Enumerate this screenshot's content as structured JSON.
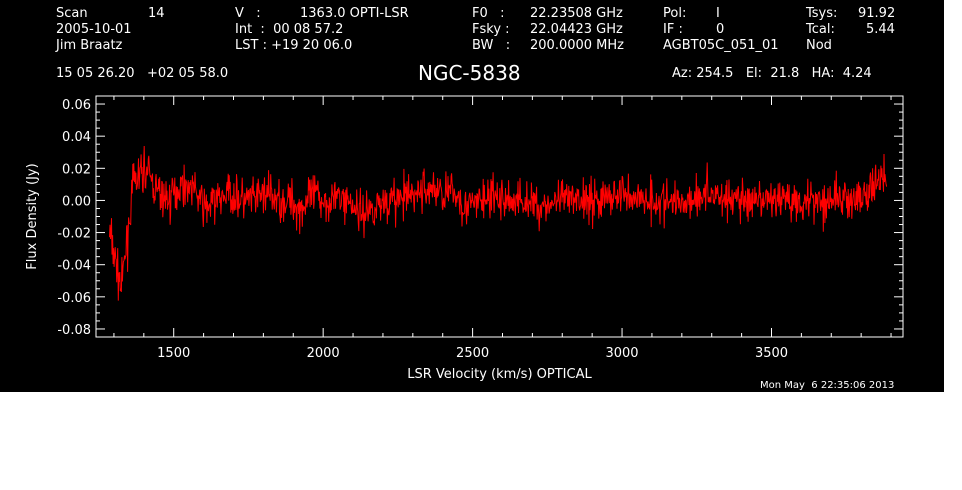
{
  "header": {
    "col1": {
      "row1_label": "Scan",
      "row1_value": "14",
      "row2": "2005-10-01",
      "row3": "Jim Braatz"
    },
    "col2": {
      "row1_label": "V   :",
      "row1_value": "1363.0 OPTI-LSR",
      "row2": "Int  :  00 08 57.2",
      "row3": "LST : +19 20 06.0"
    },
    "col3": {
      "row1_label": "F0   :",
      "row1_value": "22.23508 GHz",
      "row2_label": "Fsky :",
      "row2_value": "22.04423 GHz",
      "row3_label": "BW   :",
      "row3_value": "200.0000 MHz"
    },
    "col4": {
      "row1_label": "Pol:",
      "row1_value": "I",
      "row2_label": "IF :",
      "row2_value": "0",
      "row3": "AGBT05C_051_01"
    },
    "col5": {
      "row1_label": "Tsys:",
      "row1_value": "91.92",
      "row2_label": "Tcal:",
      "row2_value": "5.44",
      "row3": "Nod"
    },
    "coords": "15 05 26.20   +02 05 58.0",
    "source": "NGC-5838",
    "pointing": "Az: 254.5   El:  21.8   HA:  4.24",
    "timestamp": "Mon May  6 22:35:06 2013"
  },
  "colors": {
    "background": "#000000",
    "axes": "#ffffff",
    "series": "#ff0000"
  },
  "chart_data": {
    "type": "line",
    "xlabel": "LSR Velocity (km/s) OPTICAL",
    "ylabel": "Flux Density (Jy)",
    "xlim": [
      1240,
      3940
    ],
    "ylim": [
      -0.085,
      0.065
    ],
    "xticks": [
      1500,
      2000,
      2500,
      3000,
      3500
    ],
    "xtick_labels": [
      "1500",
      "2000",
      "2500",
      "3000",
      "3500"
    ],
    "yticks": [
      -0.08,
      -0.06,
      -0.04,
      -0.02,
      0.0,
      0.02,
      0.04,
      0.06
    ],
    "ytick_labels": [
      "-0.08",
      "-0.06",
      "-0.04",
      "-0.02",
      "0.00",
      "0.02",
      "0.04",
      "0.06"
    ],
    "grid": false,
    "series": [
      {
        "x_start": 1285,
        "x_step": 40,
        "values": [
          -0.02,
          -0.055,
          0.01,
          0.02,
          0.005,
          0.0,
          0.01,
          0.008,
          -0.005,
          0.0,
          0.005,
          0.0,
          0.0,
          0.005,
          0.0,
          0.0,
          -0.005,
          0.003,
          0.0,
          0.002,
          0.0,
          -0.008,
          -0.005,
          0.0,
          0.0,
          0.002,
          0.006,
          0.007,
          0.005,
          0.004,
          -0.005,
          0.0,
          0.002,
          0.0,
          0.0,
          0.0,
          -0.004,
          -0.002,
          0.0,
          0.0,
          0.002,
          0.0,
          0.003,
          0.004,
          0.002,
          0.001,
          0.0,
          -0.002,
          0.0,
          0.002,
          0.005,
          0.003,
          0.0,
          0.002,
          -0.004,
          0.0,
          0.002,
          0.0,
          0.0,
          0.001,
          0.0,
          0.002,
          0.0,
          0.0,
          0.008,
          0.02
        ]
      }
    ]
  }
}
